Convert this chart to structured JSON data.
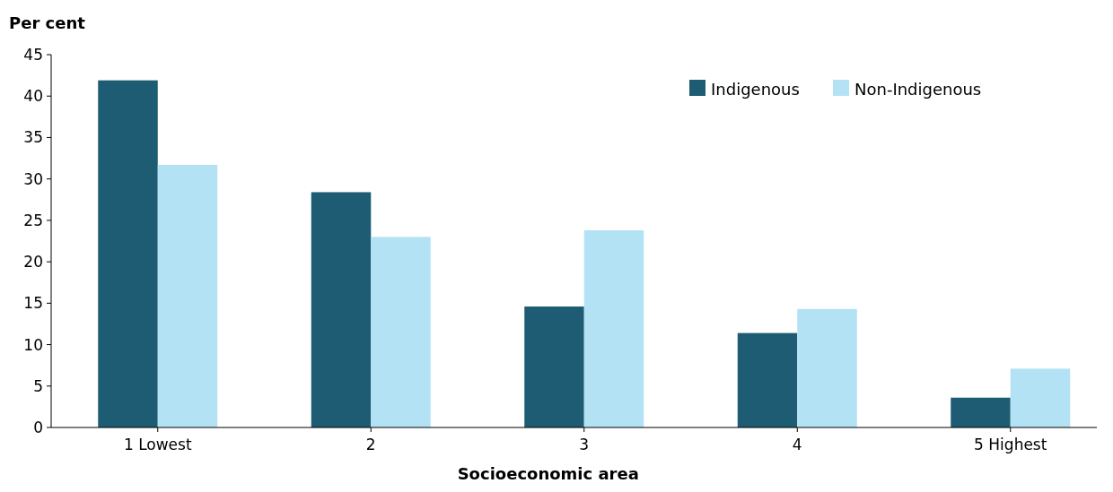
{
  "chart_data": {
    "type": "bar",
    "ylabel": "Per cent",
    "xlabel": "Socioeconomic area",
    "categories": [
      "1 Lowest",
      "2",
      "3",
      "4",
      "5 Highest"
    ],
    "series": [
      {
        "name": "Indigenous",
        "color": "#1d5c73",
        "values": [
          41.9,
          28.4,
          14.6,
          11.4,
          3.6
        ]
      },
      {
        "name": "Non-Indigenous",
        "color": "#b3e2f5",
        "values": [
          31.7,
          23.0,
          23.8,
          14.3,
          7.1
        ]
      }
    ],
    "ylim": [
      0,
      45
    ],
    "yticks": [
      0,
      5,
      10,
      15,
      20,
      25,
      30,
      35,
      40,
      45
    ],
    "grid": false,
    "legend": "top right"
  }
}
